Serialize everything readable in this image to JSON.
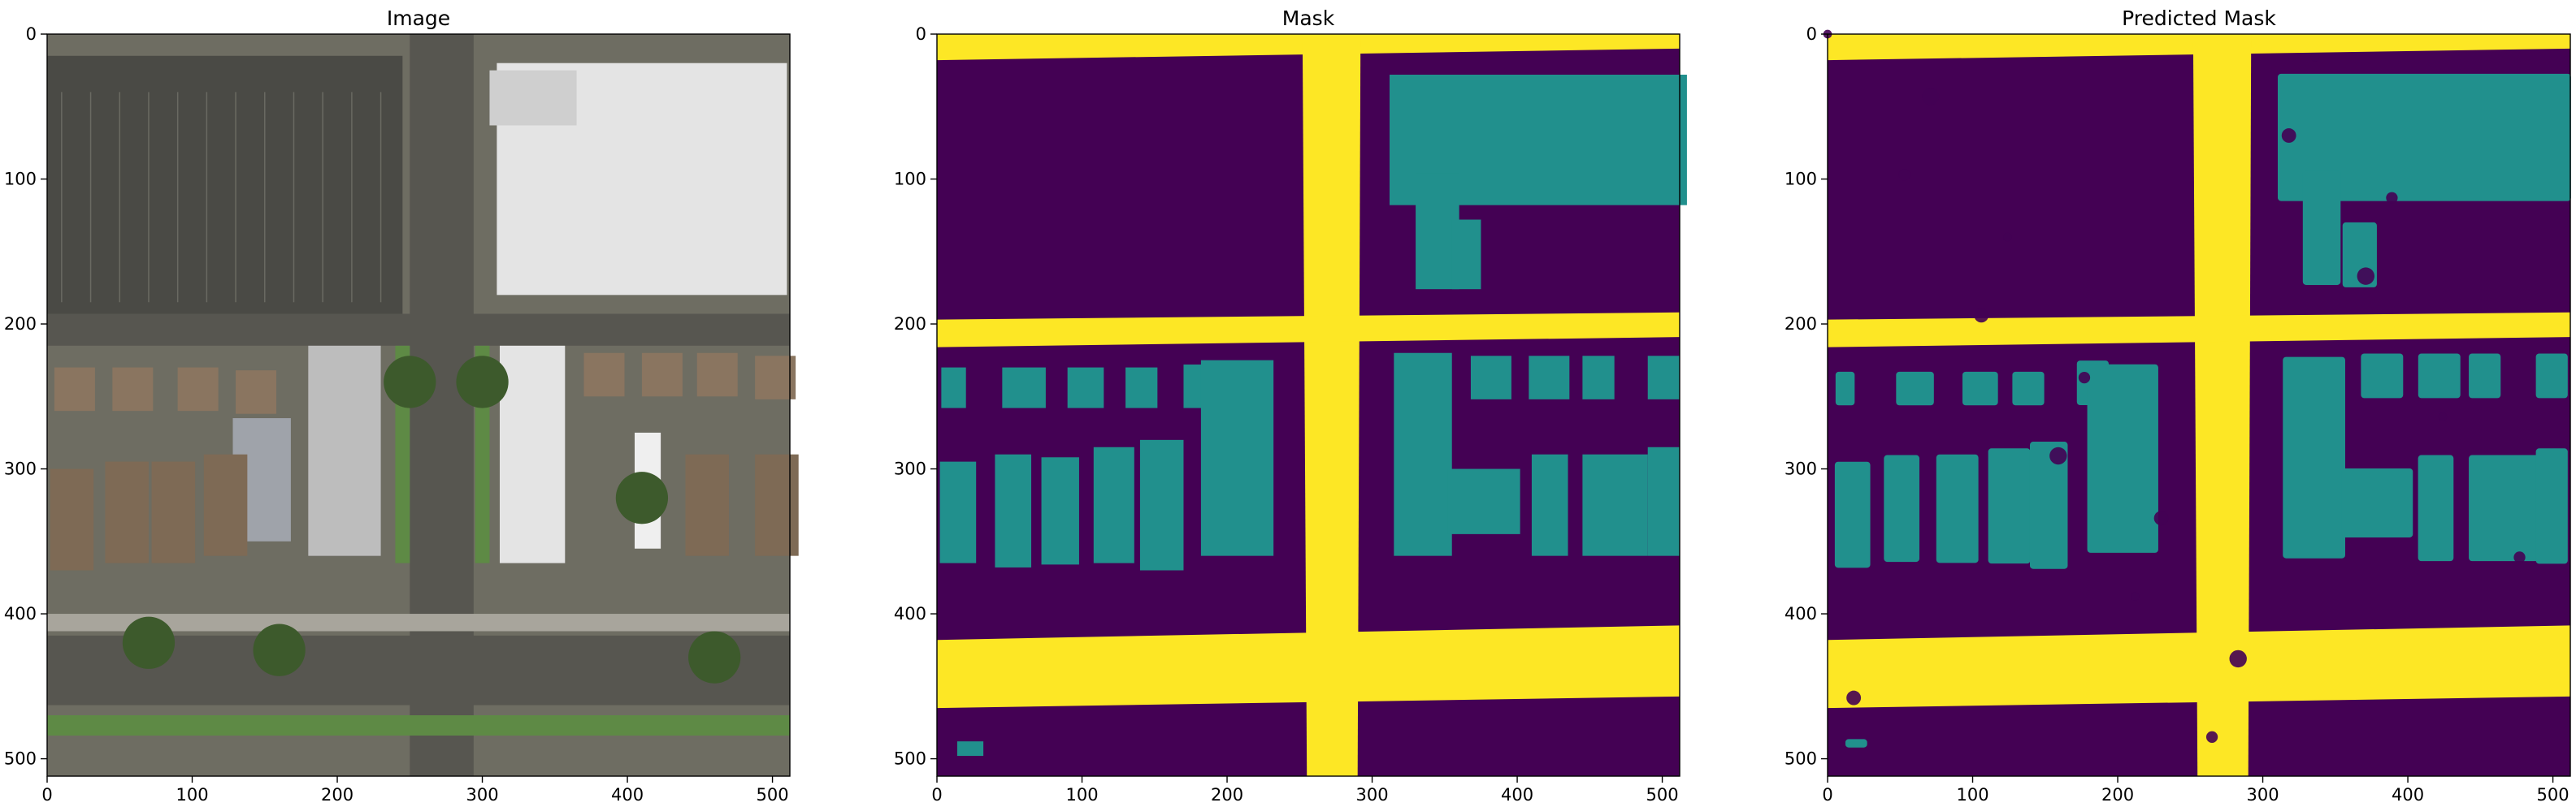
{
  "panels": [
    {
      "key": "image",
      "title": "Image",
      "kind": "photo"
    },
    {
      "key": "mask",
      "title": "Mask",
      "kind": "mask"
    },
    {
      "key": "predicted",
      "title": "Predicted Mask",
      "kind": "predicted"
    }
  ],
  "axis": {
    "x_ticks": [
      0,
      100,
      200,
      300,
      400,
      500
    ],
    "y_ticks": [
      0,
      100,
      200,
      300,
      400,
      500
    ],
    "range": [
      0,
      512
    ]
  },
  "classes": [
    {
      "name": "background",
      "color": "#440154"
    },
    {
      "name": "building",
      "color": "#21908d"
    },
    {
      "name": "road",
      "color": "#fde725"
    }
  ],
  "photo_colors": {
    "asphalt": "#575650",
    "lot": "#4a4a45",
    "roof_white": "#e4e4e4",
    "roof_brown": "#8a7560",
    "grass": "#5e8a45",
    "tree": "#3d5a2c",
    "sidewalk": "#a8a59c"
  }
}
